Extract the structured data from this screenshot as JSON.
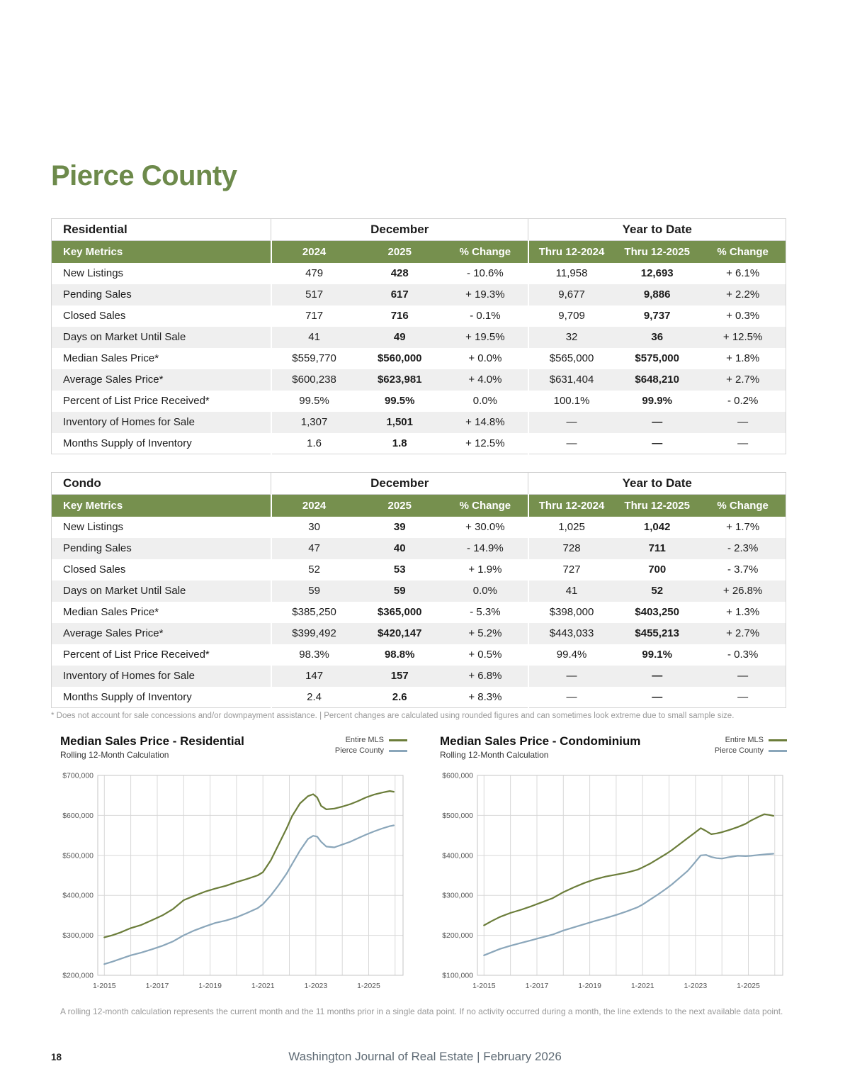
{
  "page": {
    "title": "Pierce County",
    "page_number": "18",
    "footer": "Washington Journal of Real Estate | February 2026",
    "table_footnote": "* Does not account for sale concessions and/or downpayment assistance. | Percent changes are calculated using rounded figures and can sometimes look extreme due to small sample size.",
    "chart_note": "A rolling 12-month calculation represents the current month and the 11 months prior in a single data point. If no activity occurred during a month, the line extends to the next available data point."
  },
  "colors": {
    "heading_green": "#6d8a4b",
    "table_header_green": "#76904e",
    "row_stripe_gray": "#efefef",
    "entire_mls_line": "#6b7d3a",
    "pierce_county_line": "#8aa6ba"
  },
  "tables": [
    {
      "name": "residential",
      "section_label": "Residential",
      "group_headers": [
        "December",
        "Year to Date"
      ],
      "columns": [
        "Key Metrics",
        "2024",
        "2025",
        "% Change",
        "Thru 12-2024",
        "Thru 12-2025",
        "% Change"
      ],
      "rows": [
        {
          "metric": "New Listings",
          "values": [
            "479",
            "428",
            "- 10.6%",
            "11,958",
            "12,693",
            "+ 6.1%"
          ]
        },
        {
          "metric": "Pending Sales",
          "values": [
            "517",
            "617",
            "+ 19.3%",
            "9,677",
            "9,886",
            "+ 2.2%"
          ]
        },
        {
          "metric": "Closed Sales",
          "values": [
            "717",
            "716",
            "- 0.1%",
            "9,709",
            "9,737",
            "+ 0.3%"
          ]
        },
        {
          "metric": "Days on Market Until Sale",
          "values": [
            "41",
            "49",
            "+ 19.5%",
            "32",
            "36",
            "+ 12.5%"
          ]
        },
        {
          "metric": "Median Sales Price*",
          "values": [
            "$559,770",
            "$560,000",
            "+ 0.0%",
            "$565,000",
            "$575,000",
            "+ 1.8%"
          ]
        },
        {
          "metric": "Average Sales Price*",
          "values": [
            "$600,238",
            "$623,981",
            "+ 4.0%",
            "$631,404",
            "$648,210",
            "+ 2.7%"
          ]
        },
        {
          "metric": "Percent of List Price Received*",
          "values": [
            "99.5%",
            "99.5%",
            "0.0%",
            "100.1%",
            "99.9%",
            "- 0.2%"
          ]
        },
        {
          "metric": "Inventory of Homes for Sale",
          "values": [
            "1,307",
            "1,501",
            "+ 14.8%",
            "—",
            "—",
            "—"
          ]
        },
        {
          "metric": "Months Supply of Inventory",
          "values": [
            "1.6",
            "1.8",
            "+ 12.5%",
            "—",
            "—",
            "—"
          ]
        }
      ]
    },
    {
      "name": "condo",
      "section_label": "Condo",
      "group_headers": [
        "December",
        "Year to Date"
      ],
      "columns": [
        "Key Metrics",
        "2024",
        "2025",
        "% Change",
        "Thru 12-2024",
        "Thru 12-2025",
        "% Change"
      ],
      "rows": [
        {
          "metric": "New Listings",
          "values": [
            "30",
            "39",
            "+ 30.0%",
            "1,025",
            "1,042",
            "+ 1.7%"
          ]
        },
        {
          "metric": "Pending Sales",
          "values": [
            "47",
            "40",
            "- 14.9%",
            "728",
            "711",
            "- 2.3%"
          ]
        },
        {
          "metric": "Closed Sales",
          "values": [
            "52",
            "53",
            "+ 1.9%",
            "727",
            "700",
            "- 3.7%"
          ]
        },
        {
          "metric": "Days on Market Until Sale",
          "values": [
            "59",
            "59",
            "0.0%",
            "41",
            "52",
            "+ 26.8%"
          ]
        },
        {
          "metric": "Median Sales Price*",
          "values": [
            "$385,250",
            "$365,000",
            "- 5.3%",
            "$398,000",
            "$403,250",
            "+ 1.3%"
          ]
        },
        {
          "metric": "Average Sales Price*",
          "values": [
            "$399,492",
            "$420,147",
            "+ 5.2%",
            "$443,033",
            "$455,213",
            "+ 2.7%"
          ]
        },
        {
          "metric": "Percent of List Price Received*",
          "values": [
            "98.3%",
            "98.8%",
            "+ 0.5%",
            "99.4%",
            "99.1%",
            "- 0.3%"
          ]
        },
        {
          "metric": "Inventory of Homes for Sale",
          "values": [
            "147",
            "157",
            "+ 6.8%",
            "—",
            "—",
            "—"
          ]
        },
        {
          "metric": "Months Supply of Inventory",
          "values": [
            "2.4",
            "2.6",
            "+ 8.3%",
            "—",
            "—",
            "—"
          ]
        }
      ]
    }
  ],
  "chart_data": [
    {
      "name": "residential",
      "type": "line",
      "title": "Median Sales Price - Residential",
      "subtitle": "Rolling 12-Month Calculation",
      "legend_position": "top-right",
      "grid": true,
      "ylim": [
        200000,
        700000
      ],
      "xlim": [
        2014.75,
        2026.3
      ],
      "yticks": [
        {
          "value": 700000,
          "label": "$700,000"
        },
        {
          "value": 600000,
          "label": "$600,000"
        },
        {
          "value": 500000,
          "label": "$500,000"
        },
        {
          "value": 400000,
          "label": "$400,000"
        },
        {
          "value": 300000,
          "label": "$300,000"
        },
        {
          "value": 200000,
          "label": "$200,000"
        }
      ],
      "xticks": [
        {
          "value": 2015,
          "label": "1-2015"
        },
        {
          "value": 2017,
          "label": "1-2017"
        },
        {
          "value": 2019,
          "label": "1-2019"
        },
        {
          "value": 2021,
          "label": "1-2021"
        },
        {
          "value": 2023,
          "label": "1-2023"
        },
        {
          "value": 2025,
          "label": "1-2025"
        }
      ],
      "series": [
        {
          "name": "Entire MLS",
          "color": "#6b7d3a",
          "points": [
            [
              2015,
              295000
            ],
            [
              2015.3,
              300000
            ],
            [
              2015.6,
              307000
            ],
            [
              2016,
              318000
            ],
            [
              2016.4,
              326000
            ],
            [
              2016.8,
              338000
            ],
            [
              2017.2,
              350000
            ],
            [
              2017.6,
              366000
            ],
            [
              2018,
              388000
            ],
            [
              2018.4,
              399000
            ],
            [
              2018.8,
              409000
            ],
            [
              2019.2,
              417000
            ],
            [
              2019.6,
              424000
            ],
            [
              2020,
              433000
            ],
            [
              2020.4,
              441000
            ],
            [
              2020.8,
              450000
            ],
            [
              2021,
              458000
            ],
            [
              2021.3,
              488000
            ],
            [
              2021.6,
              528000
            ],
            [
              2021.9,
              568000
            ],
            [
              2022.1,
              598000
            ],
            [
              2022.4,
              630000
            ],
            [
              2022.7,
              648000
            ],
            [
              2022.9,
              653000
            ],
            [
              2023.05,
              645000
            ],
            [
              2023.2,
              624000
            ],
            [
              2023.4,
              615000
            ],
            [
              2023.7,
              617000
            ],
            [
              2024,
              622000
            ],
            [
              2024.3,
              628000
            ],
            [
              2024.6,
              636000
            ],
            [
              2024.9,
              645000
            ],
            [
              2025.2,
              652000
            ],
            [
              2025.5,
              657000
            ],
            [
              2025.8,
              661000
            ],
            [
              2025.95,
              659000
            ]
          ]
        },
        {
          "name": "Pierce County",
          "color": "#8aa6ba",
          "points": [
            [
              2015,
              228000
            ],
            [
              2015.3,
              234000
            ],
            [
              2015.6,
              241000
            ],
            [
              2016,
              250000
            ],
            [
              2016.4,
              257000
            ],
            [
              2016.8,
              265000
            ],
            [
              2017.2,
              274000
            ],
            [
              2017.6,
              285000
            ],
            [
              2018,
              300000
            ],
            [
              2018.4,
              312000
            ],
            [
              2018.8,
              322000
            ],
            [
              2019.2,
              331000
            ],
            [
              2019.6,
              337000
            ],
            [
              2020,
              345000
            ],
            [
              2020.4,
              356000
            ],
            [
              2020.8,
              368000
            ],
            [
              2021,
              378000
            ],
            [
              2021.3,
              400000
            ],
            [
              2021.6,
              426000
            ],
            [
              2021.9,
              455000
            ],
            [
              2022.1,
              478000
            ],
            [
              2022.4,
              512000
            ],
            [
              2022.7,
              541000
            ],
            [
              2022.9,
              549000
            ],
            [
              2023.05,
              547000
            ],
            [
              2023.2,
              534000
            ],
            [
              2023.4,
              522000
            ],
            [
              2023.7,
              520000
            ],
            [
              2024,
              527000
            ],
            [
              2024.3,
              534000
            ],
            [
              2024.6,
              543000
            ],
            [
              2024.9,
              552000
            ],
            [
              2025.2,
              560000
            ],
            [
              2025.5,
              567000
            ],
            [
              2025.8,
              573000
            ],
            [
              2025.95,
              575000
            ]
          ]
        }
      ]
    },
    {
      "name": "condominium",
      "type": "line",
      "title": "Median Sales Price - Condominium",
      "subtitle": "Rolling 12-Month Calculation",
      "legend_position": "top-right",
      "grid": true,
      "ylim": [
        100000,
        600000
      ],
      "xlim": [
        2014.75,
        2026.3
      ],
      "yticks": [
        {
          "value": 600000,
          "label": "$600,000"
        },
        {
          "value": 500000,
          "label": "$500,000"
        },
        {
          "value": 400000,
          "label": "$400,000"
        },
        {
          "value": 300000,
          "label": "$300,000"
        },
        {
          "value": 200000,
          "label": "$200,000"
        },
        {
          "value": 100000,
          "label": "$100,000"
        }
      ],
      "xticks": [
        {
          "value": 2015,
          "label": "1-2015"
        },
        {
          "value": 2017,
          "label": "1-2017"
        },
        {
          "value": 2019,
          "label": "1-2019"
        },
        {
          "value": 2021,
          "label": "1-2021"
        },
        {
          "value": 2023,
          "label": "1-2023"
        },
        {
          "value": 2025,
          "label": "1-2025"
        }
      ],
      "series": [
        {
          "name": "Entire MLS",
          "color": "#6b7d3a",
          "points": [
            [
              2015,
              225000
            ],
            [
              2015.3,
              236000
            ],
            [
              2015.6,
              246000
            ],
            [
              2016,
              256000
            ],
            [
              2016.4,
              264000
            ],
            [
              2016.8,
              273000
            ],
            [
              2017.2,
              283000
            ],
            [
              2017.6,
              293000
            ],
            [
              2018,
              308000
            ],
            [
              2018.4,
              320000
            ],
            [
              2018.8,
              331000
            ],
            [
              2019.2,
              340000
            ],
            [
              2019.6,
              347000
            ],
            [
              2020,
              352000
            ],
            [
              2020.4,
              357000
            ],
            [
              2020.8,
              364000
            ],
            [
              2021,
              370000
            ],
            [
              2021.3,
              380000
            ],
            [
              2021.6,
              392000
            ],
            [
              2021.9,
              404000
            ],
            [
              2022.1,
              413000
            ],
            [
              2022.4,
              428000
            ],
            [
              2022.7,
              443000
            ],
            [
              2023,
              458000
            ],
            [
              2023.2,
              468000
            ],
            [
              2023.4,
              461000
            ],
            [
              2023.6,
              453000
            ],
            [
              2023.8,
              455000
            ],
            [
              2024,
              458000
            ],
            [
              2024.3,
              464000
            ],
            [
              2024.6,
              471000
            ],
            [
              2024.9,
              479000
            ],
            [
              2025.1,
              487000
            ],
            [
              2025.4,
              497000
            ],
            [
              2025.6,
              503000
            ],
            [
              2025.8,
              501000
            ],
            [
              2025.95,
              499000
            ]
          ]
        },
        {
          "name": "Pierce County",
          "color": "#8aa6ba",
          "points": [
            [
              2015,
              150000
            ],
            [
              2015.3,
              158000
            ],
            [
              2015.6,
              166000
            ],
            [
              2016,
              174000
            ],
            [
              2016.4,
              181000
            ],
            [
              2016.8,
              188000
            ],
            [
              2017.2,
              195000
            ],
            [
              2017.6,
              202000
            ],
            [
              2018,
              212000
            ],
            [
              2018.4,
              220000
            ],
            [
              2018.8,
              228000
            ],
            [
              2019.2,
              236000
            ],
            [
              2019.6,
              243000
            ],
            [
              2020,
              251000
            ],
            [
              2020.4,
              260000
            ],
            [
              2020.8,
              270000
            ],
            [
              2021,
              277000
            ],
            [
              2021.3,
              290000
            ],
            [
              2021.6,
              303000
            ],
            [
              2021.9,
              317000
            ],
            [
              2022.1,
              327000
            ],
            [
              2022.4,
              344000
            ],
            [
              2022.7,
              361000
            ],
            [
              2022.9,
              376000
            ],
            [
              2023.05,
              388000
            ],
            [
              2023.2,
              400000
            ],
            [
              2023.4,
              401000
            ],
            [
              2023.6,
              396000
            ],
            [
              2023.8,
              393000
            ],
            [
              2024,
              392000
            ],
            [
              2024.3,
              396000
            ],
            [
              2024.6,
              399000
            ],
            [
              2024.9,
              398000
            ],
            [
              2025.1,
              399000
            ],
            [
              2025.4,
              401000
            ],
            [
              2025.7,
              403000
            ],
            [
              2025.95,
              404000
            ]
          ]
        }
      ]
    }
  ]
}
